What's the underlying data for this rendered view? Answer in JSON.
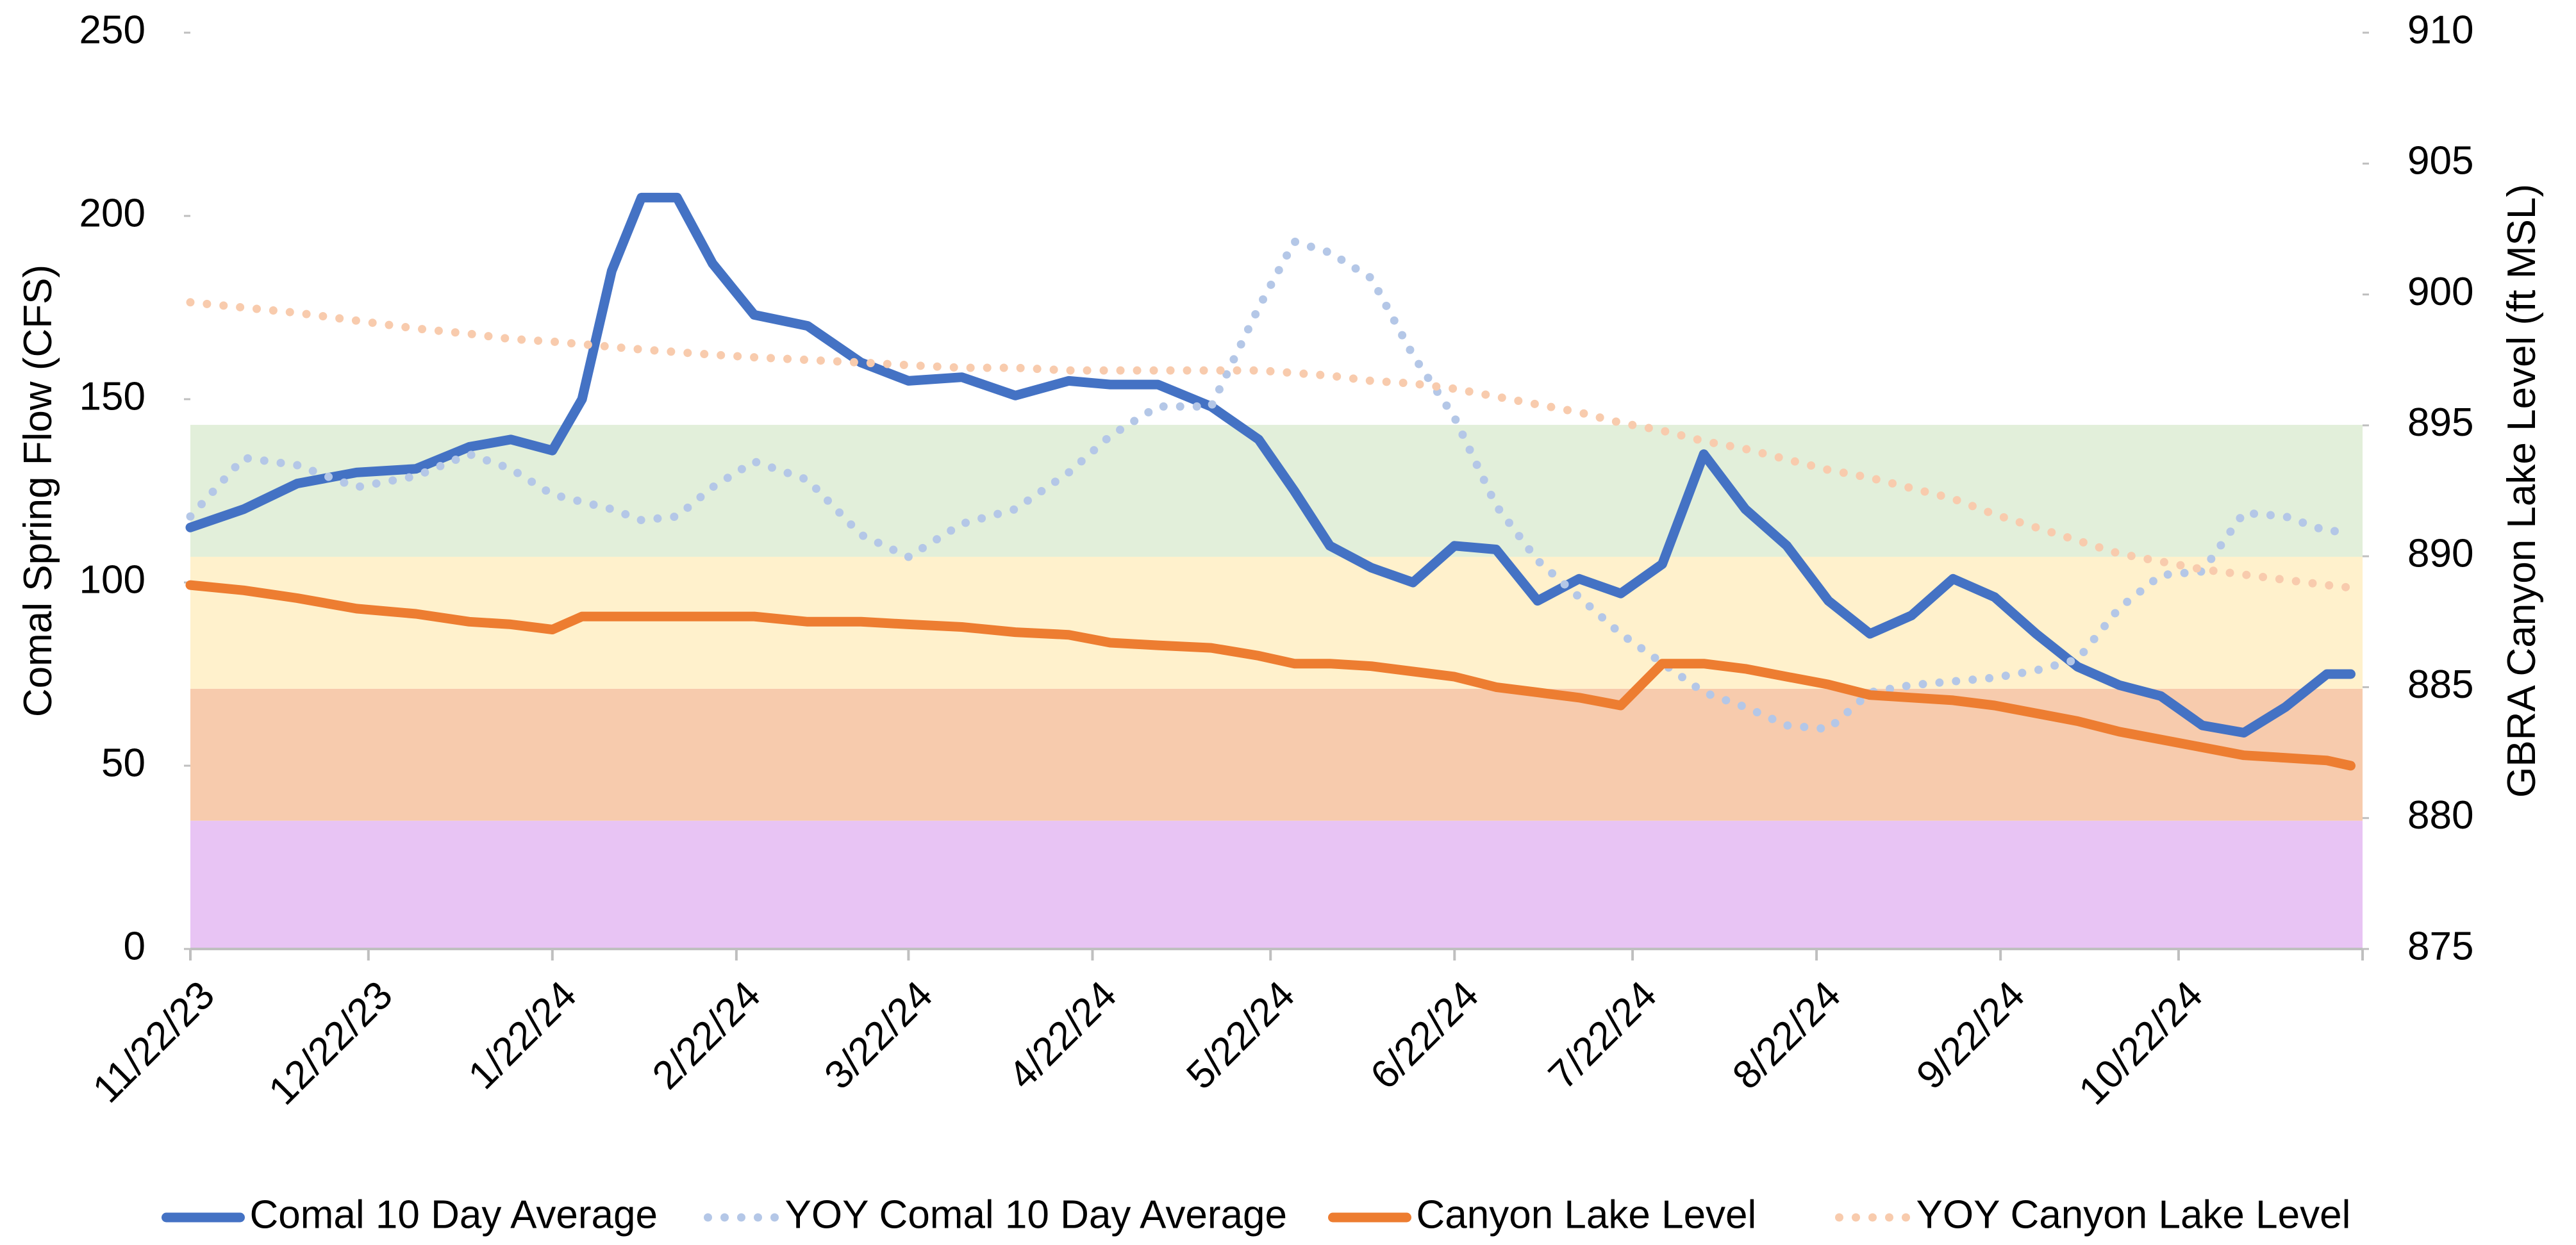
{
  "chart_data": {
    "type": "line",
    "y_label": "Comal Spring Flow (CFS)",
    "y2_label": "GBRA Canyon Lake Level (ft MSL)",
    "xlim": [
      "11/22/23",
      "11/22/24"
    ],
    "xticks": [
      "11/22/23",
      "12/22/23",
      "1/22/24",
      "2/22/24",
      "3/22/24",
      "4/22/24",
      "5/22/24",
      "6/22/24",
      "7/22/24",
      "8/22/24",
      "9/22/24",
      "10/22/24"
    ],
    "ylim": [
      0,
      250
    ],
    "yticks": [
      0,
      50,
      100,
      150,
      200,
      250
    ],
    "y2lim": [
      875,
      910
    ],
    "y2ticks": [
      875,
      880,
      885,
      890,
      895,
      900,
      905,
      910
    ],
    "legend": "bottom",
    "bands": [
      {
        "from": 0,
        "to": 35,
        "color": "#e8c4f4"
      },
      {
        "from": 35,
        "to": 71,
        "color": "#f7cbad"
      },
      {
        "from": 71,
        "to": 107,
        "color": "#fff1cc"
      },
      {
        "from": 107,
        "to": 143,
        "color": "#e2efda"
      }
    ],
    "x": [
      "11/22/23",
      "12/1/23",
      "12/10/23",
      "12/20/23",
      "12/30/23",
      "1/8/24",
      "1/15/24",
      "1/22/24",
      "1/27/24",
      "2/1/24",
      "2/6/24",
      "2/12/24",
      "2/18/24",
      "2/25/24",
      "3/5/24",
      "3/14/24",
      "3/22/24",
      "3/31/24",
      "4/9/24",
      "4/18/24",
      "4/25/24",
      "5/3/24",
      "5/12/24",
      "5/20/24",
      "5/26/24",
      "6/1/24",
      "6/8/24",
      "6/15/24",
      "6/22/24",
      "6/29/24",
      "7/6/24",
      "7/13/24",
      "7/20/24",
      "7/27/24",
      "8/3/24",
      "8/10/24",
      "8/17/24",
      "8/24/24",
      "8/31/24",
      "9/7/24",
      "9/14/24",
      "9/21/24",
      "9/28/24",
      "10/5/24",
      "10/12/24",
      "10/19/24",
      "10/26/24",
      "11/2/24",
      "11/9/24",
      "11/16/24",
      "11/20/24"
    ],
    "series": [
      {
        "name": "Comal 10 Day Average",
        "color": "#4472c4",
        "style": "solid",
        "axis": "y",
        "values": [
          115,
          120,
          127,
          130,
          131,
          137,
          139,
          136,
          150,
          185,
          205,
          205,
          187,
          173,
          170,
          160,
          155,
          156,
          151,
          155,
          154,
          154,
          148,
          139,
          125,
          110,
          104,
          100,
          110,
          109,
          95,
          101,
          97,
          105,
          135,
          120,
          110,
          95,
          86,
          91,
          101,
          96,
          86,
          77,
          72,
          69,
          61,
          59,
          66,
          75,
          75
        ]
      },
      {
        "name": "YOY Comal 10 Day Average",
        "color": "#b4c7e7",
        "style": "dotted",
        "axis": "y",
        "values": [
          118,
          134,
          132,
          126,
          129,
          135,
          131,
          124,
          122,
          120,
          117,
          118,
          126,
          133,
          128,
          113,
          107,
          116,
          120,
          130,
          140,
          148,
          148,
          175,
          193,
          190,
          183,
          162,
          145,
          121,
          106,
          96,
          86,
          78,
          70,
          66,
          61,
          60,
          70,
          72,
          73,
          74,
          76,
          79,
          93,
          102,
          103,
          119,
          118,
          114,
          114
        ]
      },
      {
        "name": "Canyon Lake Level",
        "color": "#ed7d31",
        "style": "solid",
        "axis": "y2",
        "values": [
          888.9,
          888.7,
          888.4,
          888.0,
          887.8,
          887.5,
          887.4,
          887.2,
          887.7,
          887.7,
          887.7,
          887.7,
          887.7,
          887.7,
          887.5,
          887.5,
          887.4,
          887.3,
          887.1,
          887.0,
          886.7,
          886.6,
          886.5,
          886.2,
          885.9,
          885.9,
          885.8,
          885.6,
          885.4,
          885.0,
          884.8,
          884.6,
          884.3,
          885.9,
          885.9,
          885.7,
          885.4,
          885.1,
          884.7,
          884.6,
          884.5,
          884.3,
          884.0,
          883.7,
          883.3,
          883.0,
          882.7,
          882.4,
          882.3,
          882.2,
          882.0
        ]
      },
      {
        "name": "YOY Canyon Lake Level",
        "color": "#f8cbad",
        "style": "dotted",
        "axis": "y2",
        "values": [
          899.7,
          899.5,
          899.3,
          899.0,
          898.7,
          898.5,
          898.3,
          898.2,
          898.1,
          898.0,
          897.9,
          897.8,
          897.7,
          897.6,
          897.5,
          897.4,
          897.3,
          897.2,
          897.2,
          897.1,
          897.1,
          897.1,
          897.1,
          897.1,
          897.0,
          896.9,
          896.7,
          896.6,
          896.4,
          896.1,
          895.8,
          895.5,
          895.1,
          894.8,
          894.4,
          894.1,
          893.7,
          893.3,
          893.0,
          892.6,
          892.2,
          891.6,
          891.1,
          890.6,
          890.1,
          889.8,
          889.5,
          889.3,
          889.1,
          888.9,
          888.8
        ]
      }
    ]
  }
}
